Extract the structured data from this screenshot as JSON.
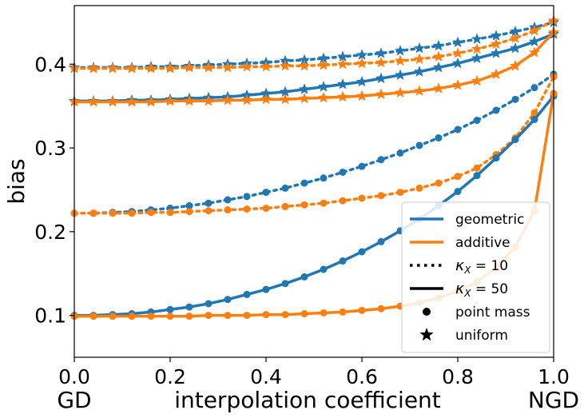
{
  "chart_data": {
    "type": "line",
    "title": "",
    "xlabel": "interpolation coefficient",
    "ylabel": "bias",
    "xlim": [
      0.0,
      1.0
    ],
    "ylim": [
      0.05,
      0.47
    ],
    "x_ticks": [
      "0.0",
      "0.2",
      "0.4",
      "0.6",
      "0.8",
      "1.0"
    ],
    "y_ticks": [
      "0.1",
      "0.2",
      "0.3",
      "0.4"
    ],
    "x_end_labels": {
      "left": "GD",
      "right": "NGD"
    },
    "grid": false,
    "legend_position": "lower-right",
    "colors": {
      "geometric": "#1f77b4",
      "additive": "#ff7f0e"
    },
    "x": [
      0.0,
      0.04,
      0.08,
      0.12,
      0.16,
      0.2,
      0.24,
      0.28,
      0.32,
      0.36,
      0.4,
      0.44,
      0.48,
      0.52,
      0.56,
      0.6,
      0.64,
      0.68,
      0.72,
      0.76,
      0.8,
      0.84,
      0.88,
      0.92,
      0.96,
      1.0
    ],
    "series": [
      {
        "name": "geometric, κ_X=10, uniform",
        "method": "geometric",
        "kappa": 10,
        "marker": "star",
        "linestyle": "dotted",
        "values": [
          0.396,
          0.396,
          0.396,
          0.396,
          0.397,
          0.397,
          0.398,
          0.399,
          0.4,
          0.401,
          0.402,
          0.404,
          0.405,
          0.407,
          0.409,
          0.411,
          0.413,
          0.416,
          0.419,
          0.422,
          0.426,
          0.43,
          0.434,
          0.439,
          0.444,
          0.45
        ]
      },
      {
        "name": "additive, κ_X=10, uniform",
        "method": "additive",
        "kappa": 10,
        "marker": "star",
        "linestyle": "dotted",
        "values": [
          0.395,
          0.395,
          0.395,
          0.395,
          0.395,
          0.395,
          0.396,
          0.396,
          0.396,
          0.397,
          0.397,
          0.398,
          0.398,
          0.399,
          0.4,
          0.401,
          0.402,
          0.404,
          0.406,
          0.409,
          0.413,
          0.418,
          0.424,
          0.431,
          0.44,
          0.452
        ]
      },
      {
        "name": "geometric, κ_X=50, uniform",
        "method": "geometric",
        "kappa": 50,
        "marker": "star",
        "linestyle": "solid",
        "values": [
          0.356,
          0.356,
          0.356,
          0.357,
          0.357,
          0.358,
          0.359,
          0.36,
          0.361,
          0.363,
          0.365,
          0.367,
          0.37,
          0.373,
          0.376,
          0.379,
          0.383,
          0.387,
          0.391,
          0.396,
          0.401,
          0.407,
          0.413,
          0.419,
          0.427,
          0.436
        ]
      },
      {
        "name": "additive, κ_X=50, uniform",
        "method": "additive",
        "kappa": 50,
        "marker": "star",
        "linestyle": "solid",
        "values": [
          0.355,
          0.355,
          0.355,
          0.355,
          0.355,
          0.356,
          0.356,
          0.356,
          0.357,
          0.357,
          0.358,
          0.358,
          0.359,
          0.36,
          0.361,
          0.362,
          0.364,
          0.366,
          0.368,
          0.371,
          0.375,
          0.38,
          0.388,
          0.398,
          0.414,
          0.438
        ]
      },
      {
        "name": "geometric, κ_X=10, point mass",
        "method": "geometric",
        "kappa": 10,
        "marker": "dot",
        "linestyle": "dotted",
        "values": [
          0.222,
          0.222,
          0.223,
          0.224,
          0.226,
          0.228,
          0.231,
          0.234,
          0.238,
          0.242,
          0.247,
          0.252,
          0.258,
          0.264,
          0.271,
          0.278,
          0.286,
          0.294,
          0.303,
          0.312,
          0.322,
          0.333,
          0.345,
          0.358,
          0.372,
          0.388
        ]
      },
      {
        "name": "additive, κ_X=10, point mass",
        "method": "additive",
        "kappa": 10,
        "marker": "dot",
        "linestyle": "dotted",
        "values": [
          0.222,
          0.222,
          0.222,
          0.222,
          0.223,
          0.223,
          0.224,
          0.225,
          0.226,
          0.227,
          0.228,
          0.23,
          0.232,
          0.234,
          0.237,
          0.24,
          0.243,
          0.247,
          0.252,
          0.258,
          0.266,
          0.276,
          0.292,
          0.312,
          0.342,
          0.385
        ]
      },
      {
        "name": "geometric, κ_X=50, point mass",
        "method": "geometric",
        "kappa": 50,
        "marker": "dot",
        "linestyle": "solid",
        "values": [
          0.1,
          0.1,
          0.101,
          0.102,
          0.104,
          0.107,
          0.11,
          0.114,
          0.119,
          0.125,
          0.131,
          0.138,
          0.146,
          0.155,
          0.165,
          0.176,
          0.188,
          0.201,
          0.215,
          0.231,
          0.248,
          0.267,
          0.288,
          0.31,
          0.334,
          0.362
        ]
      },
      {
        "name": "additive, κ_X=50, point mass",
        "method": "additive",
        "kappa": 50,
        "marker": "dot",
        "linestyle": "solid",
        "values": [
          0.099,
          0.099,
          0.099,
          0.099,
          0.099,
          0.099,
          0.099,
          0.1,
          0.1,
          0.1,
          0.101,
          0.101,
          0.102,
          0.103,
          0.104,
          0.106,
          0.108,
          0.111,
          0.115,
          0.121,
          0.129,
          0.14,
          0.157,
          0.182,
          0.225,
          0.365
        ]
      }
    ],
    "legend": [
      {
        "label": "geometric",
        "kind": "line",
        "color": "#1f77b4",
        "linestyle": "solid"
      },
      {
        "label": "additive",
        "kind": "line",
        "color": "#ff7f0e",
        "linestyle": "solid"
      },
      {
        "label": "κ",
        "sub": "X",
        "suffix": " = 10",
        "kind": "line",
        "color": "#000000",
        "linestyle": "dotted"
      },
      {
        "label": "κ",
        "sub": "X",
        "suffix": " = 50",
        "kind": "line",
        "color": "#000000",
        "linestyle": "solid"
      },
      {
        "label": "point mass",
        "kind": "dot",
        "color": "#000000"
      },
      {
        "label": "uniform",
        "kind": "star",
        "color": "#000000"
      }
    ]
  }
}
